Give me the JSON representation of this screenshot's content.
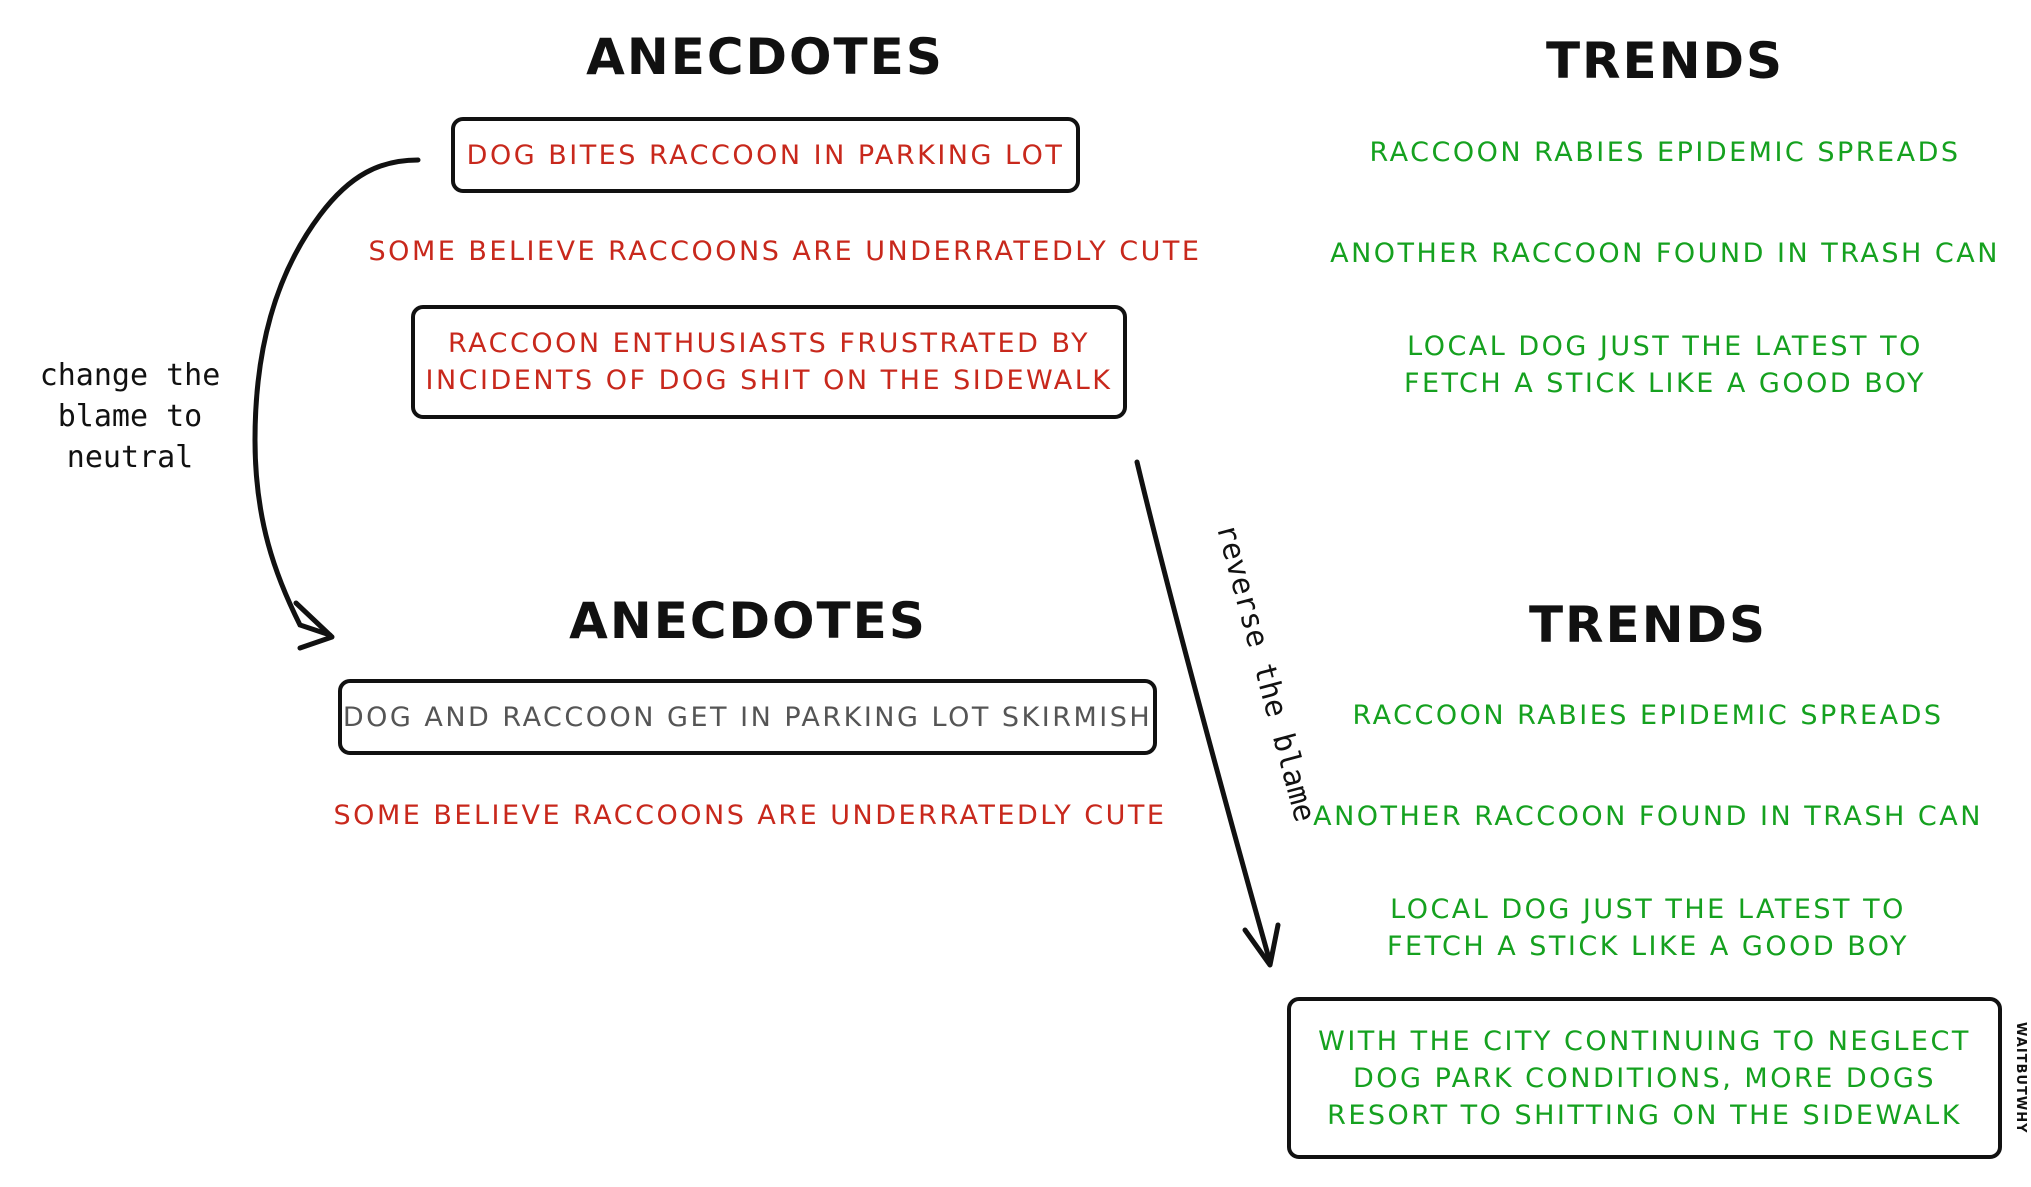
{
  "top": {
    "anecdotes": {
      "heading": "ANECDOTES",
      "items": [
        "DOG BITES RACCOON IN PARKING LOT",
        "SOME BELIEVE RACCOONS ARE UNDERRATEDLY CUTE",
        "RACCOON ENTHUSIASTS FRUSTRATED BY\nINCIDENTS OF DOG SHIT ON THE SIDEWALK"
      ]
    },
    "trends": {
      "heading": "TRENDS",
      "items": [
        "RACCOON RABIES EPIDEMIC SPREADS",
        "ANOTHER RACCOON FOUND IN TRASH CAN",
        "LOCAL DOG JUST THE LATEST TO\nFETCH A STICK LIKE A GOOD BOY"
      ]
    }
  },
  "bottom": {
    "anecdotes": {
      "heading": "ANECDOTES",
      "items": [
        "DOG AND RACCOON GET IN PARKING LOT SKIRMISH",
        "SOME BELIEVE RACCOONS ARE UNDERRATEDLY CUTE"
      ]
    },
    "trends": {
      "heading": "TRENDS",
      "items": [
        "RACCOON RABIES EPIDEMIC SPREADS",
        "ANOTHER RACCOON FOUND IN TRASH CAN",
        "LOCAL DOG JUST THE LATEST TO\nFETCH A STICK LIKE A GOOD BOY",
        "WITH THE CITY CONTINUING TO NEGLECT\nDOG PARK CONDITIONS, MORE DOGS\nRESORT TO SHITTING ON THE SIDEWALK"
      ]
    }
  },
  "arrows": {
    "left_label": "change the\nblame to\nneutral",
    "right_label": "reverse the blame"
  },
  "signature": "WAITBUTWHY",
  "colors": {
    "anecdote_negative": "#c8281c",
    "trend": "#15a11f",
    "neutral": "#555555",
    "ink": "#111111"
  }
}
